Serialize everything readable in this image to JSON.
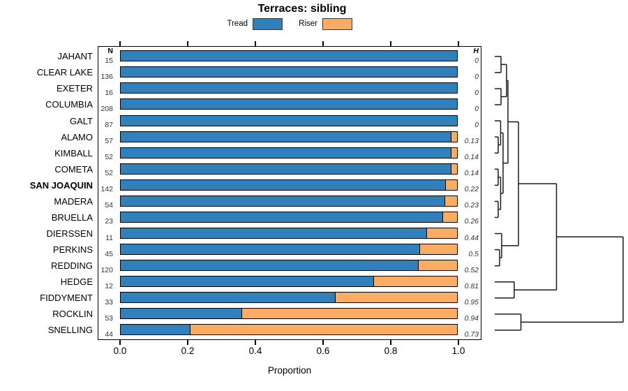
{
  "title": "Terraces: sibling",
  "legend": {
    "items": [
      {
        "label": "Tread",
        "color": "#3080BC"
      },
      {
        "label": "Riser",
        "color": "#FBAC63"
      }
    ]
  },
  "columns": {
    "n_header": "N",
    "h_header": "H"
  },
  "axis": {
    "xlabel": "Proportion",
    "ticks": [
      "0.0",
      "0.2",
      "0.4",
      "0.6",
      "0.8",
      "1.0"
    ]
  },
  "chart_data": {
    "type": "bar",
    "orientation": "horizontal",
    "stacked": true,
    "title": "Terraces: sibling",
    "xlabel": "Proportion",
    "xlim": [
      0,
      1
    ],
    "grid": false,
    "legend_position": "top",
    "bold_category": "SAN JOAQUIN",
    "categories": [
      "JAHANT",
      "CLEAR LAKE",
      "EXETER",
      "COLUMBIA",
      "GALT",
      "ALAMO",
      "KIMBALL",
      "COMETA",
      "SAN JOAQUIN",
      "MADERA",
      "BRUELLA",
      "DIERSSEN",
      "PERKINS",
      "REDDING",
      "HEDGE",
      "FIDDYMENT",
      "ROCKLIN",
      "SNELLING"
    ],
    "n_values": [
      15,
      136,
      16,
      208,
      87,
      57,
      52,
      52,
      142,
      54,
      23,
      11,
      45,
      120,
      12,
      33,
      53,
      44
    ],
    "h_values": [
      "0",
      "0",
      "0",
      "0",
      "0",
      "0.13",
      "0.14",
      "0.14",
      "0.22",
      "0.23",
      "0.26",
      "0.44",
      "0.5",
      "0.52",
      "0.81",
      "0.95",
      "0.94",
      "0.73"
    ],
    "series": [
      {
        "name": "Tread",
        "color": "#3080BC",
        "values": [
          1.0,
          1.0,
          1.0,
          1.0,
          1.0,
          0.982,
          0.981,
          0.981,
          0.965,
          0.963,
          0.957,
          0.909,
          0.889,
          0.883,
          0.75,
          0.636,
          0.358,
          0.205
        ]
      },
      {
        "name": "Riser",
        "color": "#FBAC63",
        "values": [
          0.0,
          0.0,
          0.0,
          0.0,
          0.0,
          0.018,
          0.019,
          0.019,
          0.035,
          0.037,
          0.043,
          0.091,
          0.111,
          0.117,
          0.25,
          0.364,
          0.642,
          0.795
        ]
      }
    ]
  },
  "dendrogram": {
    "h": 1.0,
    "children": [
      {
        "h": 0.481,
        "children": [
          {
            "h": 0.185,
            "children": [
              {
                "h": 0.103,
                "children": [
                  {
                    "h": 0.092,
                    "children": [
                      {
                        "h": 0.049,
                        "children": [
                          {
                            "leaf": "JAHANT"
                          },
                          {
                            "leaf": "CLEAR LAKE"
                          }
                        ]
                      },
                      {
                        "h": 0.049,
                        "children": [
                          {
                            "leaf": "EXETER"
                          },
                          {
                            "leaf": "COLUMBIA"
                          }
                        ]
                      }
                    ]
                  },
                  {
                    "h": 0.065,
                    "children": [
                      {
                        "h": 0.046,
                        "children": [
                          {
                            "leaf": "GALT"
                          },
                          {
                            "h": 0.027,
                            "children": [
                              {
                                "leaf": "ALAMO"
                              },
                              {
                                "leaf": "KIMBALL"
                              }
                            ]
                          }
                        ]
                      },
                      {
                        "h": 0.046,
                        "children": [
                          {
                            "h": 0.027,
                            "children": [
                              {
                                "leaf": "COMETA"
                              },
                              {
                                "leaf": "SAN JOAQUIN"
                              }
                            ]
                          },
                          {
                            "h": 0.027,
                            "children": [
                              {
                                "leaf": "MADERA"
                              },
                              {
                                "leaf": "BRUELLA"
                              }
                            ]
                          }
                        ]
                      }
                    ]
                  }
                ]
              },
              {
                "h": 0.054,
                "children": [
                  {
                    "leaf": "DIERSSEN"
                  },
                  {
                    "h": 0.038,
                    "children": [
                      {
                        "leaf": "PERKINS"
                      },
                      {
                        "leaf": "REDDING"
                      }
                    ]
                  }
                ]
              }
            ]
          },
          {
            "h": 0.152,
            "children": [
              {
                "leaf": "HEDGE"
              },
              {
                "leaf": "FIDDYMENT"
              }
            ]
          }
        ]
      },
      {
        "h": 0.204,
        "children": [
          {
            "leaf": "ROCKLIN"
          },
          {
            "leaf": "SNELLING"
          }
        ]
      }
    ]
  }
}
